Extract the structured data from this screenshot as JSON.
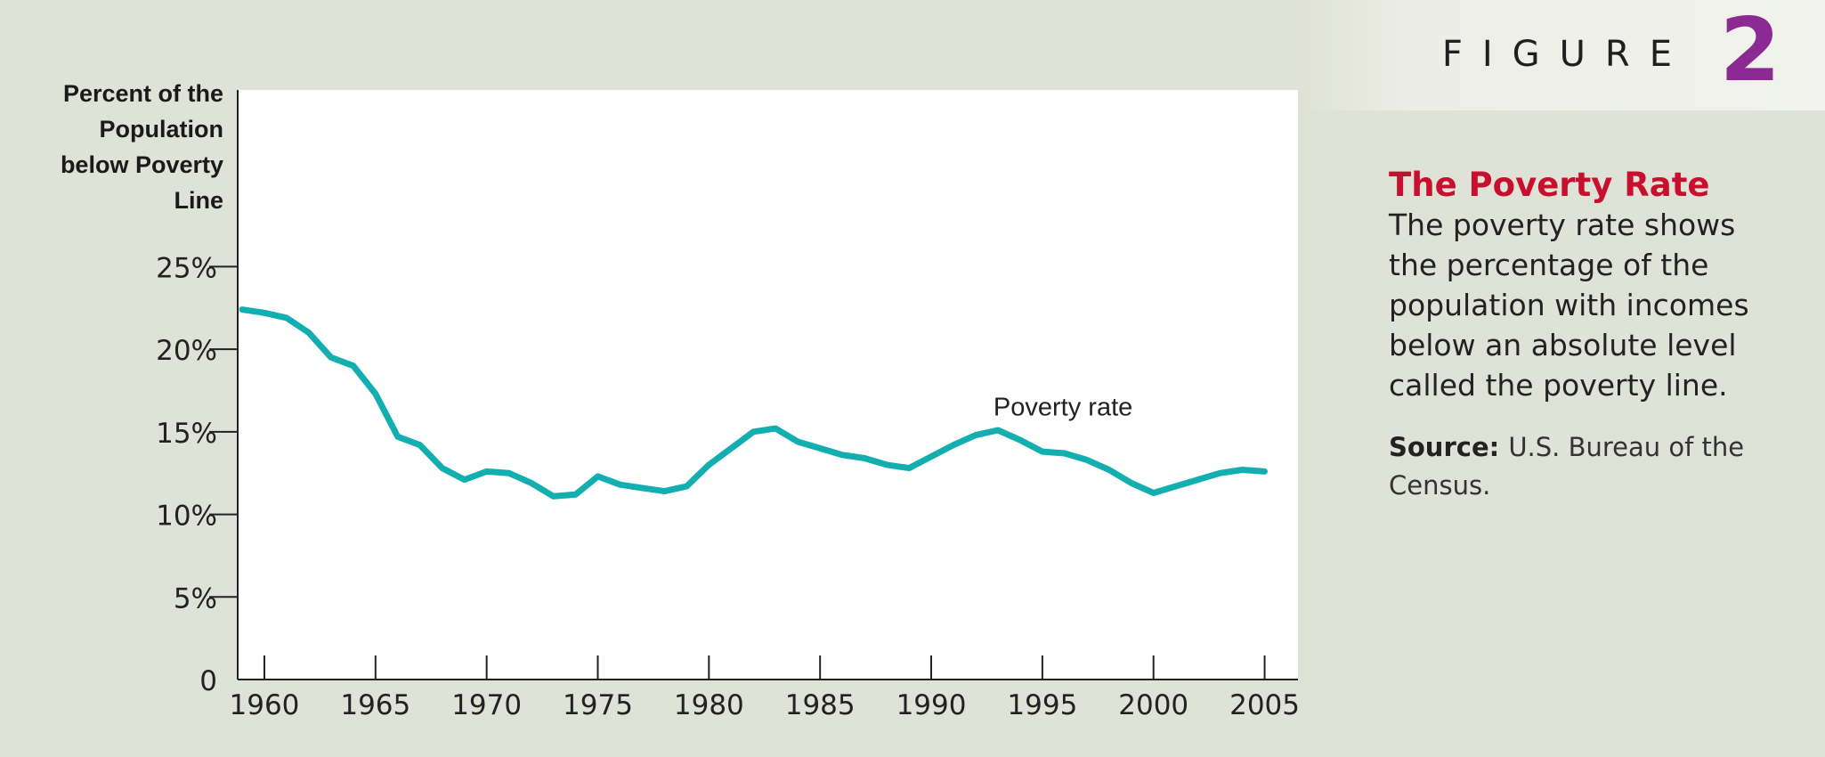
{
  "figure": {
    "word": "FIGURE",
    "number": "2"
  },
  "caption": {
    "title": "The Poverty Rate",
    "body": "The poverty rate shows the percentage of the population with incomes below an absolute level called the poverty line.",
    "source_label": "Source:",
    "source_text": "U.S. Bureau of the Census."
  },
  "colors": {
    "line": "#12aeb0",
    "title": "#c8102e",
    "figure_number": "#8b2a93",
    "background": "#dfe2d6",
    "plot_background": "#ffffff"
  },
  "chart_data": {
    "type": "line",
    "ylabel_lines": [
      "Percent of the",
      "Population",
      "below Poverty",
      "Line"
    ],
    "xlabel": "",
    "x_ticks": [
      1960,
      1965,
      1970,
      1975,
      1980,
      1985,
      1990,
      1995,
      2000,
      2005
    ],
    "y_ticks": [
      {
        "value": 0,
        "label": "0"
      },
      {
        "value": 5,
        "label": "5%"
      },
      {
        "value": 10,
        "label": "10%"
      },
      {
        "value": 15,
        "label": "15%"
      },
      {
        "value": 20,
        "label": "20%"
      },
      {
        "value": 25,
        "label": "25%"
      }
    ],
    "xlim": [
      1958.8,
      2006.5
    ],
    "ylim": [
      0,
      35.7
    ],
    "grid": false,
    "series": [
      {
        "name": "Poverty rate",
        "x": [
          1959,
          1960,
          1961,
          1962,
          1963,
          1964,
          1965,
          1966,
          1967,
          1968,
          1969,
          1970,
          1971,
          1972,
          1973,
          1974,
          1975,
          1976,
          1977,
          1978,
          1979,
          1980,
          1981,
          1982,
          1983,
          1984,
          1985,
          1986,
          1987,
          1988,
          1989,
          1990,
          1991,
          1992,
          1993,
          1994,
          1995,
          1996,
          1997,
          1998,
          1999,
          2000,
          2001,
          2002,
          2003,
          2004,
          2005
        ],
        "values": [
          22.4,
          22.2,
          21.9,
          21.0,
          19.5,
          19.0,
          17.3,
          14.7,
          14.2,
          12.8,
          12.1,
          12.6,
          12.5,
          11.9,
          11.1,
          11.2,
          12.3,
          11.8,
          11.6,
          11.4,
          11.7,
          13.0,
          14.0,
          15.0,
          15.2,
          14.4,
          14.0,
          13.6,
          13.4,
          13.0,
          12.8,
          13.5,
          14.2,
          14.8,
          15.1,
          14.5,
          13.8,
          13.7,
          13.3,
          12.7,
          11.9,
          11.3,
          11.7,
          12.1,
          12.5,
          12.7,
          12.6
        ]
      }
    ],
    "annotations": [
      {
        "text": "Poverty rate",
        "x": 1992.8,
        "y": 16.0
      }
    ]
  }
}
